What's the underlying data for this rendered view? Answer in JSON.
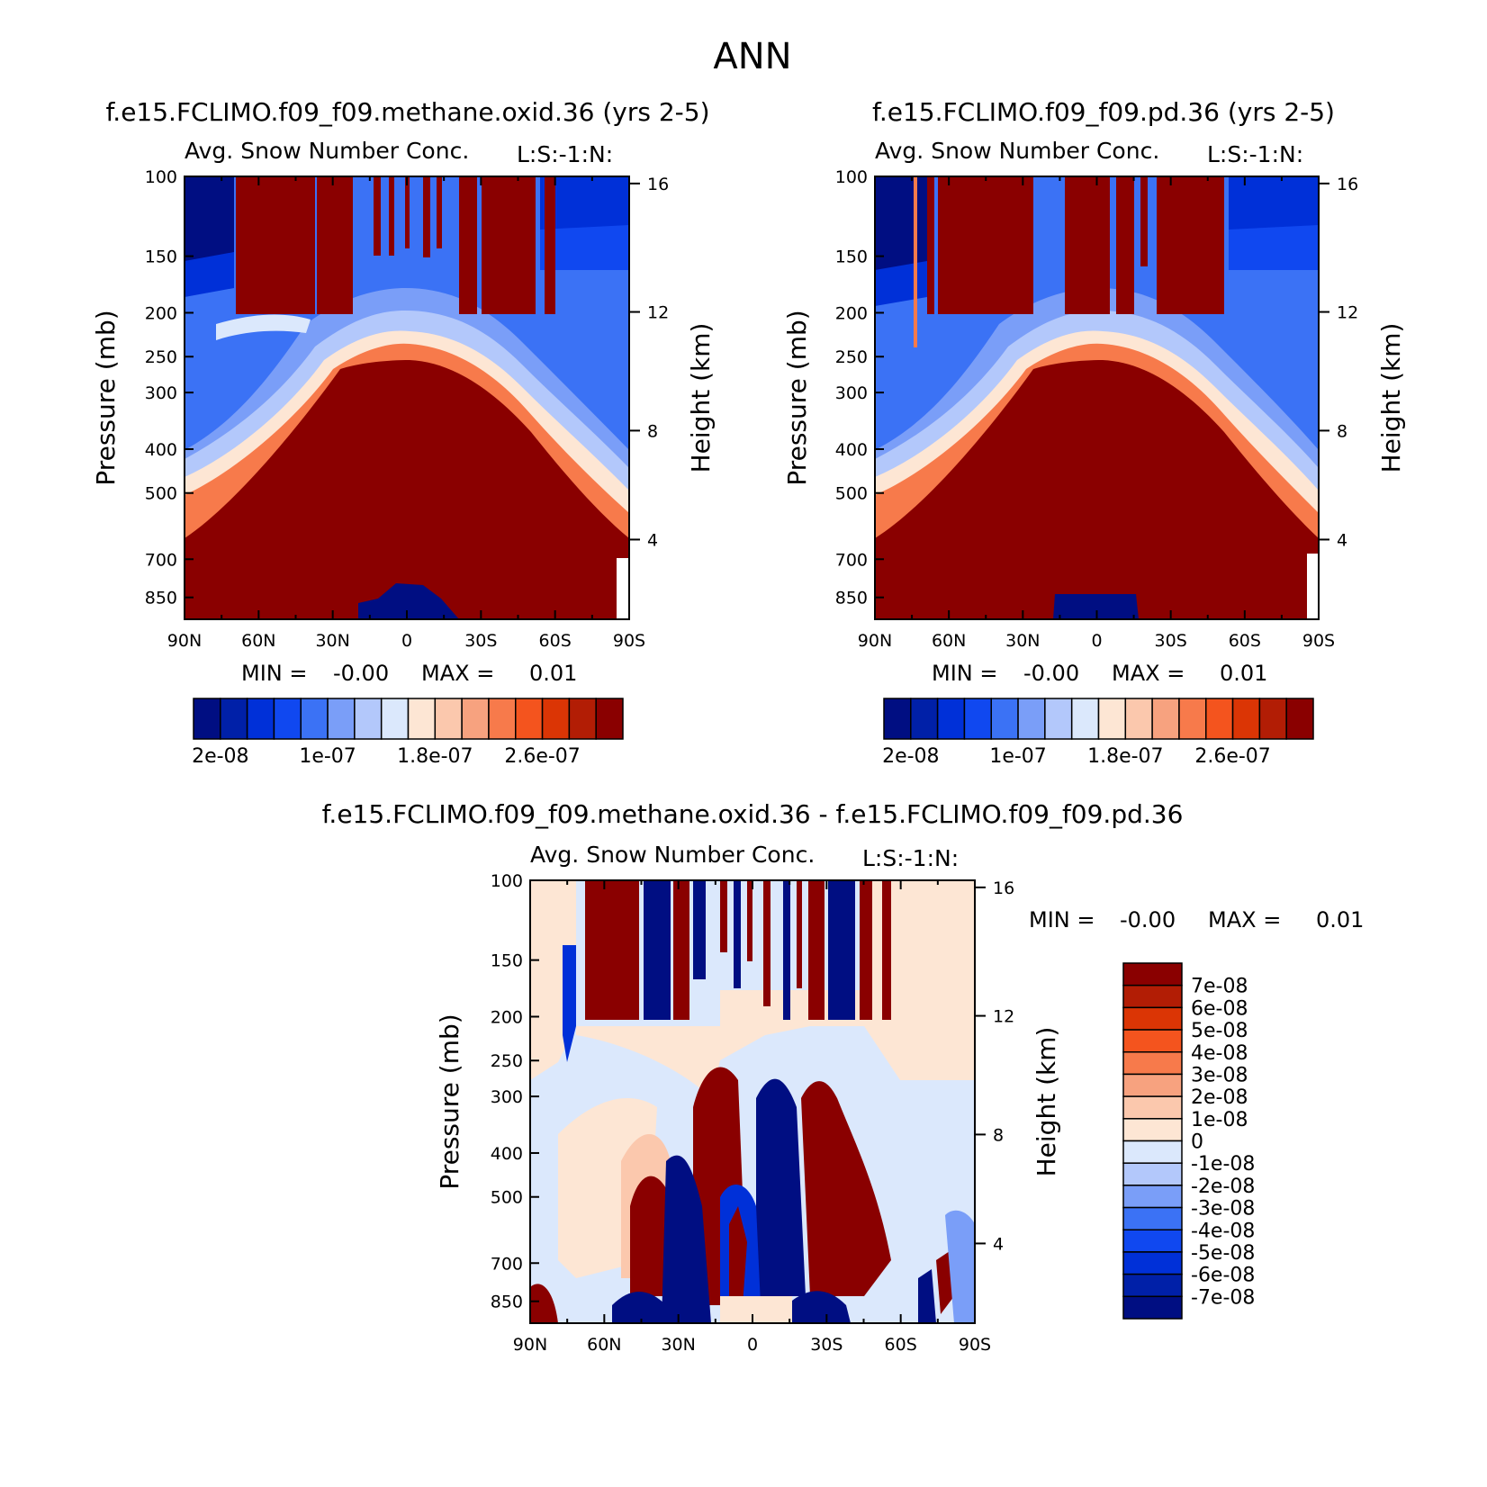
{
  "page_title": "ANN",
  "colors": {
    "abs_scale": [
      "#000e82",
      "#0020a8",
      "#0030d8",
      "#1048f0",
      "#3b72f5",
      "#7a9ef8",
      "#b3c8fb",
      "#dbe8fc",
      "#fde6d4",
      "#fbc8ad",
      "#f7a27f",
      "#f77a4b",
      "#f4541e",
      "#db3505",
      "#b21d05",
      "#8a0000"
    ],
    "diff_scale": [
      "#000e82",
      "#0020a8",
      "#0030d8",
      "#1048f0",
      "#3b72f5",
      "#7a9ef8",
      "#b3c8fb",
      "#dbe8fc",
      "#fde6d4",
      "#fbc8ad",
      "#f7a27f",
      "#f77a4b",
      "#f4541e",
      "#db3505",
      "#b21d05",
      "#8a0000"
    ]
  },
  "chart_data": [
    {
      "type": "heatmap",
      "title": "f.e15.FCLIMO.f09_f09.methane.oxid.36 (yrs 2-5)",
      "subtitle": "Avg. Snow Number Conc.",
      "units": "L:S:-1:N:",
      "ylabel": "Pressure (mb)",
      "y2label": "Height (km)",
      "xticks": [
        "90N",
        "60N",
        "30N",
        "0",
        "30S",
        "60S",
        "90S"
      ],
      "yticks": [
        "100",
        "150",
        "200",
        "250",
        "300",
        "400",
        "500",
        "700",
        "850"
      ],
      "y2ticks": [
        "16",
        "12",
        "8",
        "4"
      ],
      "min_label": "MIN =",
      "min_value": "-0.00",
      "max_label": "MAX =",
      "max_value": "0.01",
      "colorbar_labels": [
        "2e-08",
        "1e-07",
        "1.8e-07",
        "2.6e-07"
      ]
    },
    {
      "type": "heatmap",
      "title": "f.e15.FCLIMO.f09_f09.pd.36 (yrs 2-5)",
      "subtitle": "Avg. Snow Number Conc.",
      "units": "L:S:-1:N:",
      "ylabel": "Pressure (mb)",
      "y2label": "Height (km)",
      "xticks": [
        "90N",
        "60N",
        "30N",
        "0",
        "30S",
        "60S",
        "90S"
      ],
      "yticks": [
        "100",
        "150",
        "200",
        "250",
        "300",
        "400",
        "500",
        "700",
        "850"
      ],
      "y2ticks": [
        "16",
        "12",
        "8",
        "4"
      ],
      "min_label": "MIN =",
      "min_value": "-0.00",
      "max_label": "MAX =",
      "max_value": "0.01",
      "colorbar_labels": [
        "2e-08",
        "1e-07",
        "1.8e-07",
        "2.6e-07"
      ]
    },
    {
      "type": "heatmap",
      "title": "f.e15.FCLIMO.f09_f09.methane.oxid.36 - f.e15.FCLIMO.f09_f09.pd.36",
      "subtitle": "Avg. Snow Number Conc.",
      "units": "L:S:-1:N:",
      "ylabel": "Pressure (mb)",
      "y2label": "Height (km)",
      "xticks": [
        "90N",
        "60N",
        "30N",
        "0",
        "30S",
        "60S",
        "90S"
      ],
      "yticks": [
        "100",
        "150",
        "200",
        "250",
        "300",
        "400",
        "500",
        "700",
        "850"
      ],
      "y2ticks": [
        "16",
        "12",
        "8",
        "4"
      ],
      "min_label": "MIN =",
      "min_value": "-0.00",
      "max_label": "MAX =",
      "max_value": "0.01",
      "colorbar_labels": [
        "7e-08",
        "6e-08",
        "5e-08",
        "4e-08",
        "3e-08",
        "2e-08",
        "1e-08",
        "0",
        "-1e-08",
        "-2e-08",
        "-3e-08",
        "-4e-08",
        "-5e-08",
        "-6e-08",
        "-7e-08"
      ]
    }
  ]
}
